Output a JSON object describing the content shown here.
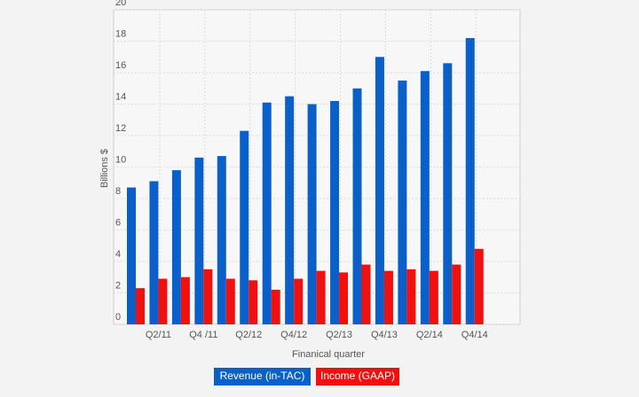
{
  "chart_data": {
    "type": "bar",
    "x_label": "Finanical quarter",
    "y_label": "Billions $",
    "categories": [
      null,
      "Q2/11",
      null,
      "Q4 /11",
      null,
      "Q2/12",
      null,
      "Q4/12",
      null,
      "Q2/13",
      null,
      "Q4/13",
      null,
      "Q2/14",
      null,
      "Q4/14"
    ],
    "series": [
      {
        "name": "Revenue (in-TAC)",
        "color": "#0a60c8",
        "values": [
          8.7,
          9.1,
          9.8,
          10.6,
          10.7,
          12.3,
          14.1,
          14.5,
          14.0,
          14.2,
          15.0,
          17.0,
          15.5,
          16.1,
          16.6,
          18.2
        ]
      },
      {
        "name": "Income (GAAP)",
        "color": "#f01010",
        "values": [
          2.3,
          2.9,
          3.0,
          3.5,
          2.9,
          2.8,
          2.2,
          2.9,
          3.4,
          3.3,
          3.8,
          3.4,
          3.5,
          3.4,
          3.8,
          4.8
        ]
      }
    ],
    "ylim": [
      0,
      20
    ],
    "yticks": [
      0,
      2,
      4,
      6,
      8,
      10,
      12,
      14,
      16,
      18,
      20
    ],
    "grid": true
  }
}
